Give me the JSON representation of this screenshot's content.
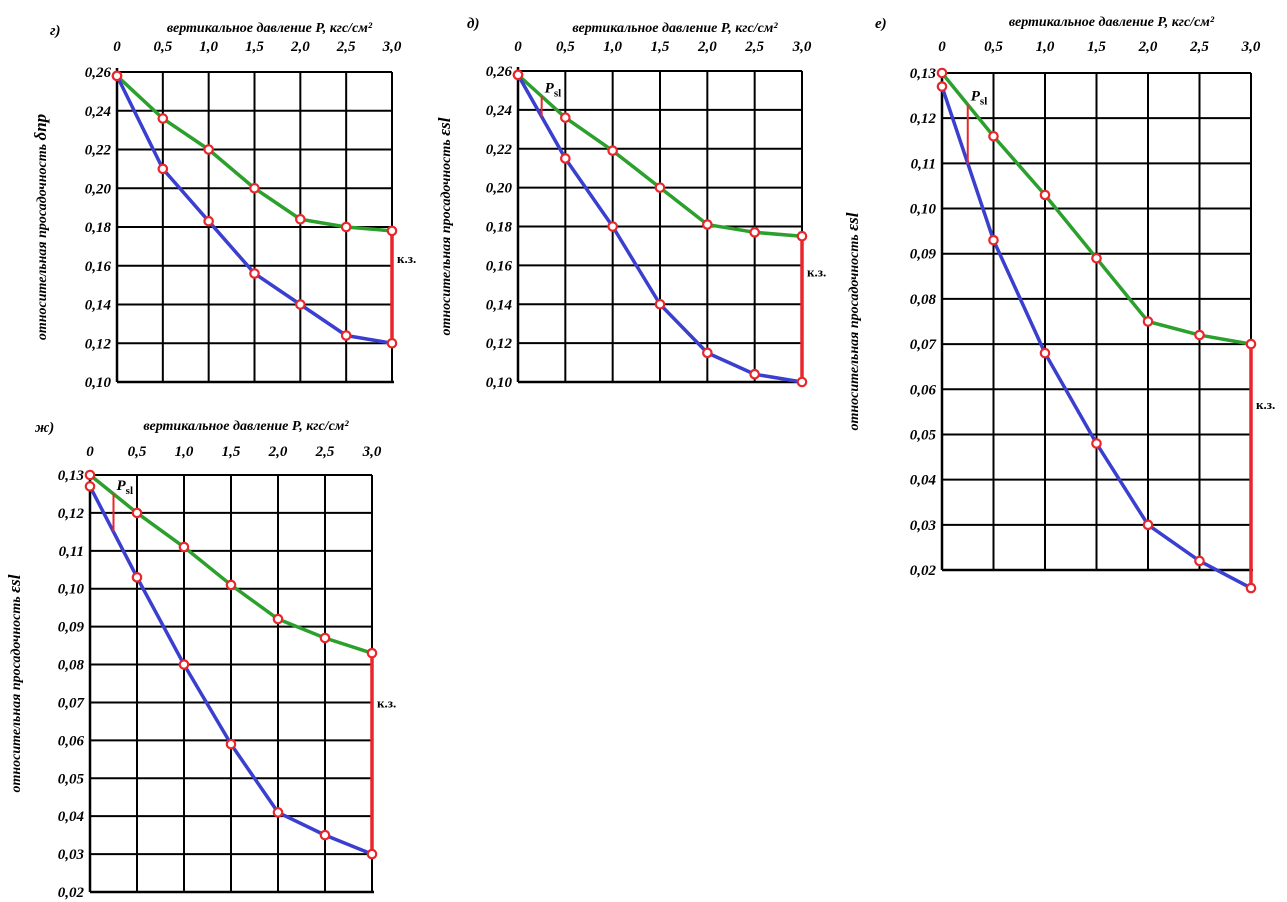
{
  "colors": {
    "green": "#2ca02c",
    "blue": "#3a3fcf",
    "red": "#e8262b",
    "grid": "#000000"
  },
  "chart_data": [
    {
      "type": "line",
      "panel_label": "г)",
      "xlabel": "вертикальное давление Р, кгс/см²",
      "ylabel": "относительная просадочность",
      "ylabel_symbol": "δпр",
      "x": [
        0,
        0.5,
        1.0,
        1.5,
        2.0,
        2.5,
        3.0
      ],
      "x_tick_labels": [
        "0",
        "0,5",
        "1,0",
        "1,5",
        "2,0",
        "2,5",
        "3,0"
      ],
      "ylim": [
        0.1,
        0.26
      ],
      "y_tick_labels": [
        "0,26",
        "0,24",
        "0,22",
        "0,20",
        "0,18",
        "0,16",
        "0,14",
        "0,12",
        "0,10"
      ],
      "series": [
        {
          "color": "green",
          "values": [
            0.258,
            0.236,
            0.22,
            0.2,
            0.184,
            0.18,
            0.178
          ]
        },
        {
          "color": "blue",
          "values": [
            0.258,
            0.21,
            0.183,
            0.156,
            0.14,
            0.124,
            0.12
          ]
        }
      ],
      "annotation": "к.з.",
      "psl": null
    },
    {
      "type": "line",
      "panel_label": "д)",
      "xlabel": "вертикальное давление Р, кгс/см²",
      "ylabel": "относительная просадочность",
      "ylabel_symbol": "εsl",
      "x": [
        0,
        0.5,
        1.0,
        1.5,
        2.0,
        2.5,
        3.0
      ],
      "x_tick_labels": [
        "0",
        "0,5",
        "1,0",
        "1,5",
        "2,0",
        "2,5",
        "3,0"
      ],
      "ylim": [
        0.1,
        0.26
      ],
      "y_tick_labels": [
        "0,26",
        "0,24",
        "0,22",
        "0,20",
        "0,18",
        "0,16",
        "0,14",
        "0,12",
        "0,10"
      ],
      "series": [
        {
          "color": "green",
          "values": [
            0.258,
            0.236,
            0.219,
            0.2,
            0.181,
            0.177,
            0.175
          ]
        },
        {
          "color": "blue",
          "values": [
            0.258,
            0.215,
            0.18,
            0.14,
            0.115,
            0.104,
            0.1
          ]
        }
      ],
      "annotation": "к.з.",
      "psl": {
        "label": "Psl",
        "x": 0.25
      }
    },
    {
      "type": "line",
      "panel_label": "е)",
      "xlabel": "вертикальное давление Р, кгс/см²",
      "ylabel": "относительная просадочность",
      "ylabel_symbol": "εsl",
      "x": [
        0,
        0.5,
        1.0,
        1.5,
        2.0,
        2.5,
        3.0
      ],
      "x_tick_labels": [
        "0",
        "0,5",
        "1,0",
        "1,5",
        "2,0",
        "2,5",
        "3,0"
      ],
      "ylim": [
        0.013,
        0.13
      ],
      "y_tick_labels": [
        "0,13",
        "0,12",
        "0,11",
        "0,10",
        "0,09",
        "0,08",
        "0,07",
        "0,06",
        "0,05",
        "0,04",
        "0,03",
        "0,02"
      ],
      "series": [
        {
          "color": "green",
          "values": [
            0.13,
            0.116,
            0.103,
            0.089,
            0.075,
            0.072,
            0.07
          ]
        },
        {
          "color": "blue",
          "values": [
            0.127,
            0.093,
            0.068,
            0.048,
            0.03,
            0.022,
            0.016
          ]
        }
      ],
      "annotation": "к.з.",
      "psl": {
        "label": "Psl",
        "x": 0.25
      }
    },
    {
      "type": "line",
      "panel_label": "ж)",
      "xlabel": "вертикальное давление Р, кгс/см²",
      "ylabel": "относительная просадочность",
      "ylabel_symbol": "εsl",
      "x": [
        0,
        0.5,
        1.0,
        1.5,
        2.0,
        2.5,
        3.0
      ],
      "x_tick_labels": [
        "0",
        "0,5",
        "1,0",
        "1,5",
        "2,0",
        "2,5",
        "3,0"
      ],
      "ylim": [
        0.02,
        0.13
      ],
      "y_tick_labels": [
        "0,13",
        "0,12",
        "0,11",
        "0,10",
        "0,09",
        "0,08",
        "0,07",
        "0,06",
        "0,05",
        "0,04",
        "0,03",
        "0,02"
      ],
      "series": [
        {
          "color": "green",
          "values": [
            0.13,
            0.12,
            0.111,
            0.101,
            0.092,
            0.087,
            0.083
          ]
        },
        {
          "color": "blue",
          "values": [
            0.127,
            0.103,
            0.08,
            0.059,
            0.041,
            0.035,
            0.03
          ]
        }
      ],
      "annotation": "к.з.",
      "psl": {
        "label": "Psl",
        "x": 0.25
      }
    }
  ]
}
